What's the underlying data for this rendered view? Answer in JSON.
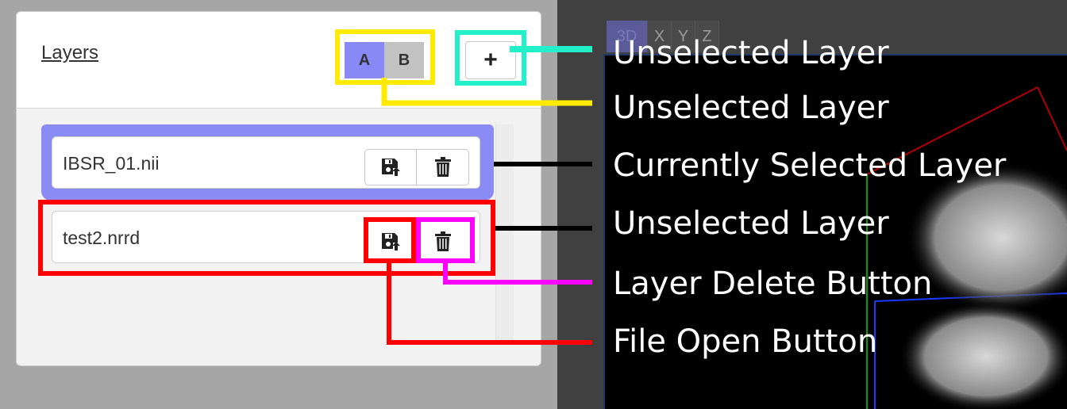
{
  "layers_panel": {
    "title": "Layers",
    "group_buttons": [
      {
        "label": "A",
        "color": "#8888f6"
      },
      {
        "label": "B",
        "color": "#c2c2c2"
      }
    ],
    "add_button_label": "+",
    "layers": [
      {
        "name": "IBSR_01.nii",
        "selected": true
      },
      {
        "name": "test2.nrrd",
        "selected": false
      }
    ]
  },
  "viewer": {
    "tabs": [
      "3D",
      "X",
      "Y",
      "Z"
    ],
    "active_tab": "3D"
  },
  "annotations": [
    {
      "label": "Unselected Layer",
      "color": "#22f0c8"
    },
    {
      "label": "Unselected Layer",
      "color": "#ffea00"
    },
    {
      "label": "Currently Selected Layer",
      "color": "#000000"
    },
    {
      "label": "Unselected Layer",
      "color": "#000000"
    },
    {
      "label": "Layer Delete Button",
      "color": "#ff00ff"
    },
    {
      "label": "File Open Button",
      "color": "#ff0000"
    }
  ]
}
